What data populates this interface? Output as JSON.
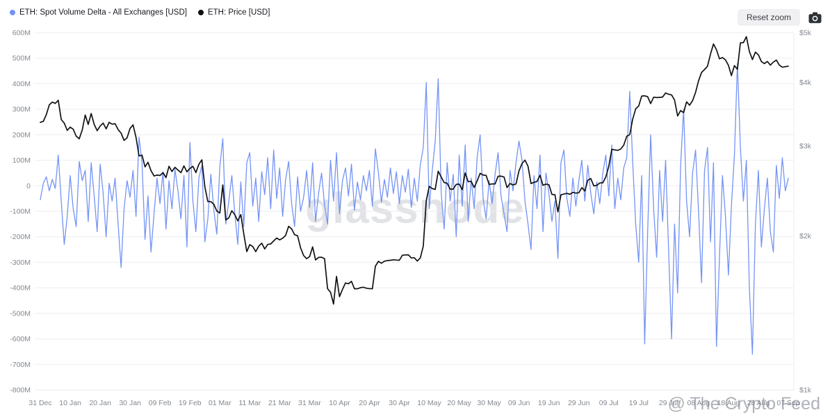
{
  "toolbar": {
    "reset_zoom_label": "Reset zoom"
  },
  "watermark": {
    "center": "glassnode",
    "bottom_right": "@ The Crypto Feed"
  },
  "chart_data": {
    "type": "line",
    "grid": "horizontal",
    "legend_position": "top-left",
    "x_axis": {
      "points_per_tick": 10,
      "tick_labels": [
        "31 Dec",
        "10 Jan",
        "20 Jan",
        "30 Jan",
        "09 Feb",
        "19 Feb",
        "01 Mar",
        "11 Mar",
        "21 Mar",
        "31 Mar",
        "10 Apr",
        "20 Apr",
        "30 Apr",
        "10 May",
        "20 May",
        "30 May",
        "09 Jun",
        "19 Jun",
        "29 Jun",
        "09 Jul",
        "19 Jul",
        "29 Jul",
        "08 Aug",
        "18 Aug",
        "28 Aug",
        "07 Sep"
      ]
    },
    "y_axis_left": {
      "max": 600,
      "min": -800,
      "tick_step": 100,
      "unit": "million USD",
      "tick_labels": [
        "600M",
        "500M",
        "400M",
        "300M",
        "200M",
        "100M",
        "0",
        "-100M",
        "-200M",
        "-300M",
        "-400M",
        "-500M",
        "-600M",
        "-700M",
        "-800M"
      ]
    },
    "y_axis_right": {
      "scale": "log",
      "max": 5000,
      "min": 1000,
      "tick_values": [
        5000,
        4000,
        3000,
        2000,
        1000
      ],
      "tick_labels": [
        "$5k",
        "$4k",
        "$3k",
        "$2k",
        "$1k"
      ]
    },
    "series": [
      {
        "name": "ETH: Spot Volume Delta - All Exchanges [USD]",
        "axis": "left",
        "color": "#7493f5",
        "values_unit": "million USD",
        "values": [
          -55,
          10,
          35,
          -20,
          25,
          -10,
          120,
          -60,
          -230,
          -120,
          40,
          -90,
          -160,
          95,
          20,
          60,
          -140,
          90,
          -40,
          -180,
          85,
          -30,
          -200,
          10,
          -60,
          30,
          -150,
          -320,
          -90,
          20,
          -45,
          60,
          -120,
          190,
          90,
          -210,
          -40,
          -260,
          -110,
          30,
          -70,
          55,
          -170,
          20,
          -90,
          65,
          -20,
          -130,
          40,
          -240,
          170,
          -60,
          -180,
          30,
          80,
          -220,
          -130,
          45,
          -95,
          -190,
          75,
          185,
          -150,
          -60,
          40,
          -110,
          -230,
          15,
          -160,
          90,
          130,
          -80,
          30,
          -140,
          55,
          -35,
          110,
          -90,
          140,
          -50,
          70,
          -120,
          25,
          95,
          -70,
          -160,
          35,
          -100,
          -45,
          60,
          -85,
          90,
          -140,
          -30,
          50,
          -75,
          -150,
          100,
          -60,
          130,
          -110,
          20,
          70,
          -40,
          85,
          -95,
          15,
          -55,
          40,
          -20,
          60,
          -80,
          145,
          50,
          -65,
          25,
          -45,
          70,
          -30,
          55,
          -70,
          40,
          -25,
          65,
          -85,
          30,
          -60,
          80,
          150,
          405,
          -90,
          60,
          175,
          420,
          -30,
          -170,
          90,
          -60,
          45,
          -200,
          120,
          -80,
          160,
          -140,
          30,
          -90,
          110,
          200,
          -50,
          -130,
          20,
          -70,
          45,
          130,
          -40,
          -110,
          -180,
          60,
          -20,
          90,
          175,
          100,
          -60,
          -150,
          -250,
          40,
          -90,
          120,
          -180,
          50,
          -30,
          -140,
          -60,
          -285,
          90,
          140,
          -50,
          -120,
          30,
          -80,
          20,
          100,
          -60,
          80,
          -30,
          -110,
          15,
          -70,
          50,
          120,
          -40,
          160,
          -90,
          30,
          -55,
          70,
          110,
          370,
          90,
          -150,
          -300,
          40,
          -620,
          -180,
          200,
          -90,
          -280,
          60,
          -140,
          100,
          -250,
          -600,
          -150,
          -420,
          80,
          300,
          -60,
          -200,
          50,
          140,
          -100,
          -380,
          60,
          150,
          -220,
          90,
          -630,
          -280,
          40,
          -120,
          -350,
          -80,
          120,
          480,
          150,
          -60,
          100,
          -400,
          -660,
          -150,
          60,
          -240,
          -90,
          30,
          -180,
          -260,
          80,
          -50,
          110,
          -20,
          30
        ]
      },
      {
        "name": "ETH: Price [USD]",
        "axis": "right",
        "color": "#101114",
        "values_unit": "USD",
        "values": [
          3337,
          3353,
          3455,
          3612,
          3657,
          3635,
          3687,
          3381,
          3327,
          3219,
          3267,
          3237,
          3137,
          3100,
          3225,
          3450,
          3307,
          3474,
          3307,
          3215,
          3284,
          3327,
          3242,
          3338,
          3310,
          3318,
          3232,
          3180,
          3077,
          3114,
          3248,
          3300,
          3118,
          2870,
          2880,
          2731,
          2788,
          2686,
          2622,
          2632,
          2627,
          2661,
          2603,
          2738,
          2675,
          2726,
          2692,
          2661,
          2744,
          2671,
          2713,
          2738,
          2662,
          2764,
          2819,
          2495,
          2336,
          2335,
          2308,
          2238,
          2218,
          2518,
          2150,
          2171,
          2242,
          2202,
          2141,
          2203,
          2020,
          1865,
          1924,
          1908,
          1864,
          1911,
          1937,
          1887,
          1926,
          1930,
          1957,
          1982,
          1966,
          1980,
          2006,
          2090,
          2066,
          2012,
          2003,
          1896,
          1832,
          1806,
          1823,
          1905,
          1796,
          1817,
          1818,
          1806,
          1578,
          1553,
          1472,
          1668,
          1522,
          1573,
          1619,
          1613,
          1631,
          1577,
          1577,
          1585,
          1588,
          1581,
          1578,
          1577,
          1746,
          1785,
          1769,
          1786,
          1791,
          1793,
          1797,
          1795,
          1793,
          1834,
          1837,
          1838,
          1812,
          1814,
          1787,
          1812,
          1910,
          2344,
          2501,
          2477,
          2468,
          2679,
          2609,
          2545,
          2537,
          2471,
          2471,
          2524,
          2527,
          2465,
          2658,
          2554,
          2560,
          2489,
          2564,
          2653,
          2632,
          2629,
          2523,
          2530,
          2529,
          2618,
          2620,
          2609,
          2488,
          2534,
          2518,
          2529,
          2683,
          2771,
          2816,
          2738,
          2533,
          2549,
          2556,
          2630,
          2514,
          2527,
          2520,
          2412,
          2410,
          2230,
          2408,
          2417,
          2424,
          2414,
          2435,
          2427,
          2431,
          2487,
          2450,
          2573,
          2591,
          2507,
          2513,
          2540,
          2542,
          2609,
          2740,
          2955,
          2949,
          2942,
          2960,
          3012,
          3135,
          3159,
          3388,
          3549,
          3593,
          3758,
          3762,
          3747,
          3633,
          3739,
          3732,
          3736,
          3742,
          3810,
          3789,
          3777,
          3690,
          3435,
          3520,
          3487,
          3661,
          3606,
          3680,
          3820,
          4025,
          4179,
          4236,
          4300,
          4540,
          4753,
          4630,
          4445,
          4470,
          4424,
          4316,
          4120,
          4310,
          4240,
          4776,
          4780,
          4910,
          4594,
          4430,
          4580,
          4525,
          4390,
          4350,
          4392,
          4320,
          4380,
          4420,
          4320,
          4280,
          4290,
          4300
        ]
      }
    ]
  }
}
